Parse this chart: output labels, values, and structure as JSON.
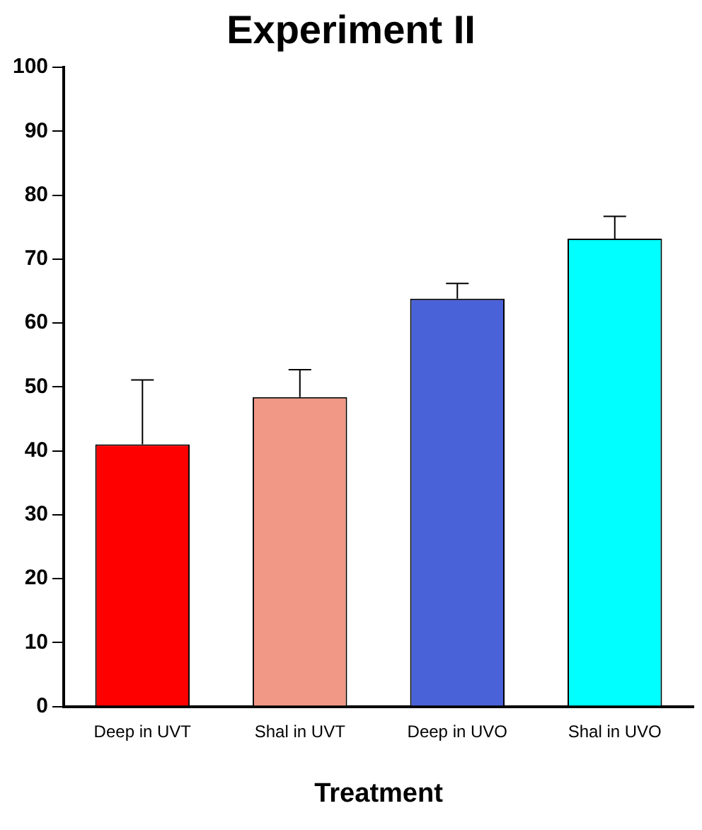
{
  "chart_data": {
    "type": "bar",
    "title": "Experiment II",
    "xlabel": "Treatment",
    "categories": [
      "Deep in UVT",
      "Shal in UVT",
      "Deep in UVO",
      "Shal in UVO"
    ],
    "values": [
      41.0,
      48.4,
      63.8,
      73.2
    ],
    "colors": [
      "#ff0000",
      "#f29886",
      "#4a62d8",
      "#00ffff"
    ],
    "errors": [
      [
        41.0,
        51.1
      ],
      [
        48.4,
        52.7
      ],
      [
        63.8,
        66.2
      ],
      [
        73.2,
        76.7
      ]
    ],
    "ylim": [
      0,
      100
    ],
    "yticks": [
      0,
      10,
      20,
      30,
      40,
      50,
      60,
      70,
      80,
      90,
      100
    ],
    "grid": false,
    "legend": false
  }
}
